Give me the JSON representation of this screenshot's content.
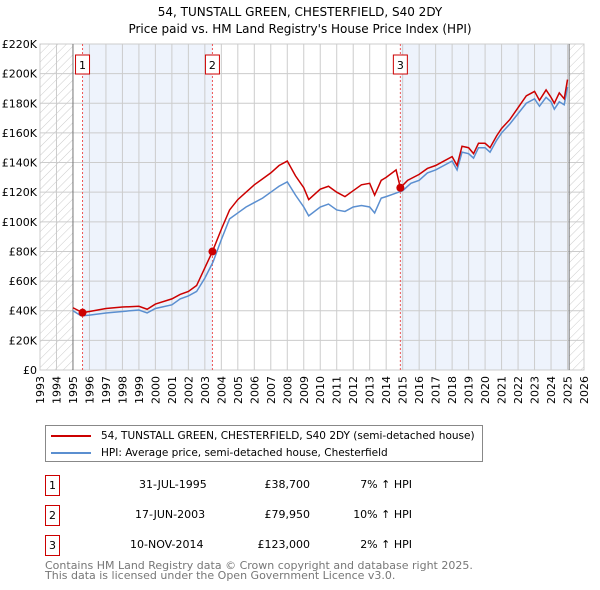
{
  "chart_data": {
    "type": "line",
    "title": "54, TUNSTALL GREEN, CHESTERFIELD, S40 2DY",
    "subtitle": "Price paid vs. HM Land Registry's House Price Index (HPI)",
    "xlim": [
      1993,
      2026
    ],
    "ylim": [
      0,
      220000
    ],
    "yticks": [
      0,
      20000,
      40000,
      60000,
      80000,
      100000,
      120000,
      140000,
      160000,
      180000,
      200000,
      220000
    ],
    "ytick_labels": [
      "£0",
      "£20K",
      "£40K",
      "£60K",
      "£80K",
      "£100K",
      "£120K",
      "£140K",
      "£160K",
      "£180K",
      "£200K",
      "£220K"
    ],
    "xticks": [
      1993,
      1994,
      1995,
      1996,
      1997,
      1998,
      1999,
      2000,
      2001,
      2002,
      2003,
      2004,
      2005,
      2006,
      2007,
      2008,
      2009,
      2010,
      2011,
      2012,
      2013,
      2014,
      2015,
      2016,
      2017,
      2018,
      2019,
      2020,
      2021,
      2022,
      2023,
      2024,
      2025,
      2026
    ],
    "grid": true,
    "colors": {
      "property": "#cc0000",
      "hpi": "#5b8fd0",
      "shade": "#eef3fc"
    },
    "series": [
      {
        "name": "54, TUNSTALL GREEN, CHESTERFIELD, S40 2DY (semi-detached house)",
        "key": "property",
        "points": [
          [
            1995,
            42000
          ],
          [
            1995.58,
            38700
          ],
          [
            1996,
            39500
          ],
          [
            1997,
            41500
          ],
          [
            1998,
            42500
          ],
          [
            1999,
            43000
          ],
          [
            1999.5,
            41000
          ],
          [
            2000,
            44500
          ],
          [
            2001,
            48000
          ],
          [
            2001.5,
            51000
          ],
          [
            2002,
            53000
          ],
          [
            2002.5,
            57000
          ],
          [
            2003.46,
            79950
          ],
          [
            2004,
            95000
          ],
          [
            2004.5,
            108000
          ],
          [
            2005,
            115000
          ],
          [
            2005.5,
            120000
          ],
          [
            2006,
            125000
          ],
          [
            2006.5,
            129000
          ],
          [
            2007,
            133000
          ],
          [
            2007.5,
            138000
          ],
          [
            2008,
            141000
          ],
          [
            2008.5,
            131000
          ],
          [
            2009,
            123000
          ],
          [
            2009.3,
            115000
          ],
          [
            2010,
            122000
          ],
          [
            2010.5,
            124000
          ],
          [
            2011,
            120000
          ],
          [
            2011.5,
            117000
          ],
          [
            2012,
            121000
          ],
          [
            2012.5,
            125000
          ],
          [
            2013,
            126000
          ],
          [
            2013.3,
            118000
          ],
          [
            2013.7,
            128000
          ],
          [
            2014,
            130000
          ],
          [
            2014.6,
            135000
          ],
          [
            2014.86,
            123000
          ],
          [
            2015.3,
            128000
          ],
          [
            2016,
            132000
          ],
          [
            2016.5,
            136000
          ],
          [
            2017,
            138000
          ],
          [
            2017.5,
            141000
          ],
          [
            2018,
            144000
          ],
          [
            2018.3,
            138000
          ],
          [
            2018.6,
            151000
          ],
          [
            2019,
            150000
          ],
          [
            2019.3,
            146000
          ],
          [
            2019.6,
            153000
          ],
          [
            2020,
            153000
          ],
          [
            2020.3,
            150000
          ],
          [
            2020.7,
            158000
          ],
          [
            2021,
            163000
          ],
          [
            2021.5,
            169000
          ],
          [
            2022,
            177000
          ],
          [
            2022.5,
            185000
          ],
          [
            2023,
            188000
          ],
          [
            2023.3,
            182000
          ],
          [
            2023.7,
            189000
          ],
          [
            2024,
            184000
          ],
          [
            2024.2,
            180000
          ],
          [
            2024.5,
            187000
          ],
          [
            2024.8,
            183000
          ],
          [
            2025,
            196000
          ]
        ]
      },
      {
        "name": "HPI: Average price, semi-detached house, Chesterfield",
        "key": "hpi",
        "points": [
          [
            1995,
            40000
          ],
          [
            1995.5,
            36500
          ],
          [
            1996,
            37000
          ],
          [
            1997,
            38500
          ],
          [
            1998,
            39500
          ],
          [
            1999,
            40500
          ],
          [
            1999.5,
            38500
          ],
          [
            2000,
            41500
          ],
          [
            2001,
            44000
          ],
          [
            2001.5,
            48000
          ],
          [
            2002,
            50000
          ],
          [
            2002.5,
            53000
          ],
          [
            2003,
            62000
          ],
          [
            2003.5,
            73000
          ],
          [
            2004,
            88000
          ],
          [
            2004.5,
            102000
          ],
          [
            2005,
            106000
          ],
          [
            2005.5,
            110000
          ],
          [
            2006,
            113000
          ],
          [
            2006.5,
            116000
          ],
          [
            2007,
            120000
          ],
          [
            2007.5,
            124000
          ],
          [
            2008,
            127000
          ],
          [
            2008.5,
            118000
          ],
          [
            2009,
            110000
          ],
          [
            2009.3,
            104000
          ],
          [
            2010,
            110000
          ],
          [
            2010.5,
            112000
          ],
          [
            2011,
            108000
          ],
          [
            2011.5,
            107000
          ],
          [
            2012,
            110000
          ],
          [
            2012.5,
            111000
          ],
          [
            2013,
            110000
          ],
          [
            2013.3,
            106000
          ],
          [
            2013.7,
            116000
          ],
          [
            2014,
            117000
          ],
          [
            2014.5,
            119000
          ],
          [
            2015,
            121000
          ],
          [
            2015.5,
            126000
          ],
          [
            2016,
            128000
          ],
          [
            2016.5,
            133000
          ],
          [
            2017,
            135000
          ],
          [
            2017.5,
            138000
          ],
          [
            2018,
            141000
          ],
          [
            2018.3,
            135000
          ],
          [
            2018.6,
            147000
          ],
          [
            2019,
            146000
          ],
          [
            2019.3,
            143000
          ],
          [
            2019.6,
            150000
          ],
          [
            2020,
            150000
          ],
          [
            2020.3,
            147000
          ],
          [
            2020.7,
            155000
          ],
          [
            2021,
            160000
          ],
          [
            2021.5,
            166000
          ],
          [
            2022,
            173000
          ],
          [
            2022.5,
            180000
          ],
          [
            2023,
            183000
          ],
          [
            2023.3,
            178000
          ],
          [
            2023.7,
            184000
          ],
          [
            2024,
            181000
          ],
          [
            2024.2,
            176000
          ],
          [
            2024.5,
            181000
          ],
          [
            2024.8,
            179000
          ],
          [
            2025,
            191000
          ]
        ]
      }
    ],
    "sales": [
      {
        "label": "1",
        "x": 1995.58,
        "price": 38700,
        "date": "31-JUL-1995",
        "price_text": "£38,700",
        "hpi_text": "7% ↑ HPI"
      },
      {
        "label": "2",
        "x": 2003.46,
        "price": 79950,
        "date": "17-JUN-2003",
        "price_text": "£79,950",
        "hpi_text": "10% ↑ HPI"
      },
      {
        "label": "3",
        "x": 2014.86,
        "price": 123000,
        "date": "10-NOV-2014",
        "price_text": "£123,000",
        "hpi_text": "2% ↑ HPI"
      }
    ],
    "data_range": [
      1995,
      2025.1
    ]
  },
  "footer": [
    "Contains HM Land Registry data © Crown copyright and database right 2025.",
    "This data is licensed under the Open Government Licence v3.0."
  ]
}
